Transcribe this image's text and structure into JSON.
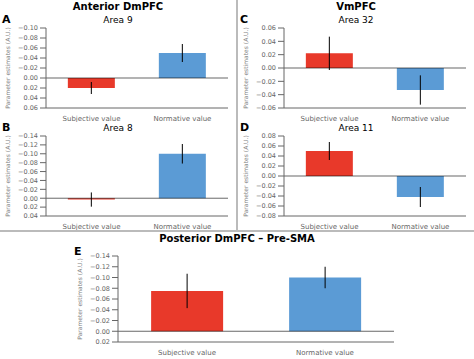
{
  "chart_data": [
    {
      "type": "bar",
      "title": "Area 9",
      "annotations": [
        "Anterior  DmPFC",
        "A"
      ],
      "categories": [
        "Subjective value",
        "Normative value"
      ],
      "values": [
        0.02,
        -0.05
      ],
      "errors": [
        0.012,
        0.018
      ],
      "colors": [
        "#e8392a",
        "#5b9bd5"
      ],
      "ylabel": "Parameter estimates (A.U.)",
      "ylim": [
        0.06,
        -0.1
      ],
      "yticks": [
        {
          "value": -0.1,
          "label": "−0.10"
        },
        {
          "value": -0.08,
          "label": "−0.08"
        },
        {
          "value": -0.06,
          "label": "−0.06"
        },
        {
          "value": -0.04,
          "label": "−0.04"
        },
        {
          "value": -0.02,
          "label": "−0.02"
        },
        {
          "value": 0,
          "label": "0.00"
        },
        0.02,
        0.04,
        0.06
      ]
    },
    {
      "type": "bar",
      "title": "Area 8",
      "annotations": [
        "B"
      ],
      "categories": [
        "Subjective value",
        "Normative value"
      ],
      "values": [
        0.003,
        -0.1
      ],
      "errors": [
        0.016,
        0.022
      ],
      "colors": [
        "#e8392a",
        "#5b9bd5"
      ],
      "ylabel": "Parameter estimates (A.U.)",
      "ylim": [
        0.04,
        -0.14
      ],
      "yticks": [
        {
          "value": -0.14,
          "label": "−0.14"
        },
        {
          "value": -0.12,
          "label": "−0.12"
        },
        {
          "value": -0.1,
          "label": "−0.10"
        },
        {
          "value": -0.08,
          "label": "−0.08"
        },
        {
          "value": -0.06,
          "label": "−0.06"
        },
        {
          "value": -0.04,
          "label": "−0.04"
        },
        {
          "value": -0.02,
          "label": "−0.02"
        },
        {
          "value": 0,
          "label": "0.00"
        },
        0.02,
        0.04
      ]
    },
    {
      "type": "bar",
      "title": "Area 32",
      "annotations": [
        "VmPFC",
        "C"
      ],
      "categories": [
        "Subjective value",
        "Normative value"
      ],
      "values": [
        0.022,
        -0.033
      ],
      "errors": [
        0.025,
        0.022
      ],
      "colors": [
        "#e8392a",
        "#5b9bd5"
      ],
      "ylabel": "Parameter estimates (A.U.)",
      "ylim": [
        -0.06,
        0.06
      ],
      "yticks": [
        0.06,
        0.04,
        0.02,
        {
          "value": 0,
          "label": "0.00"
        },
        {
          "value": -0.02,
          "label": "−0.02"
        },
        {
          "value": -0.04,
          "label": "−0.04"
        },
        {
          "value": -0.06,
          "label": "−0.06"
        }
      ]
    },
    {
      "type": "bar",
      "title": "Area 11",
      "annotations": [
        "D"
      ],
      "categories": [
        "Subjective value",
        "Normative value"
      ],
      "values": [
        0.05,
        -0.042
      ],
      "errors": [
        0.018,
        0.02
      ],
      "colors": [
        "#e8392a",
        "#5b9bd5"
      ],
      "ylabel": "Parameter estimates (A.U.)",
      "ylim": [
        -0.08,
        0.08
      ],
      "yticks": [
        0.08,
        0.06,
        0.04,
        0.02,
        {
          "value": 0,
          "label": "0.00"
        },
        {
          "value": -0.02,
          "label": "−0.02"
        },
        {
          "value": -0.04,
          "label": "−0.04"
        },
        {
          "value": -0.06,
          "label": "−0.06"
        },
        {
          "value": -0.08,
          "label": "−0.08"
        }
      ]
    },
    {
      "type": "bar",
      "annotations": [
        "Posterior DmPFC – Pre-SMA",
        "E"
      ],
      "categories": [
        "Subjective value",
        "Normative value"
      ],
      "values": [
        -0.075,
        -0.1
      ],
      "errors": [
        0.032,
        0.02
      ],
      "colors": [
        "#e8392a",
        "#5b9bd5"
      ],
      "ylabel": "Parameter estimates (A.U.)",
      "ylim": [
        0.02,
        -0.14
      ],
      "yticks": [
        {
          "value": -0.14,
          "label": "−0.14"
        },
        {
          "value": -0.12,
          "label": "−0.12"
        },
        {
          "value": -0.1,
          "label": "−0.10"
        },
        {
          "value": -0.08,
          "label": "−0.08"
        },
        {
          "value": -0.06,
          "label": "−0.06"
        },
        {
          "value": -0.04,
          "label": "−0.04"
        },
        {
          "value": -0.02,
          "label": "−0.02"
        },
        {
          "value": 0,
          "label": "0.00"
        },
        0.02
      ]
    }
  ]
}
